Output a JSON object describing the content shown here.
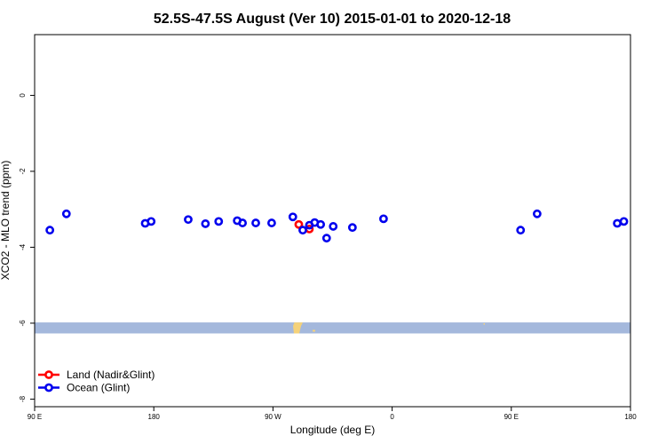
{
  "chart_data": {
    "type": "scatter",
    "title": "52.5S-47.5S August (Ver 10)   2015-01-01 to 2020-12-18",
    "xlabel": "Longitude (deg E)",
    "ylabel": "XCO2 - MLO trend (ppm)",
    "xlim": [
      90,
      540
    ],
    "ylim": [
      -8.2,
      1.6
    ],
    "x_ticks": [
      {
        "value": 90,
        "label": "90 E"
      },
      {
        "value": 180,
        "label": "180"
      },
      {
        "value": 270,
        "label": "90 W"
      },
      {
        "value": 360,
        "label": "0"
      },
      {
        "value": 450,
        "label": "90 E"
      },
      {
        "value": 540,
        "label": "180"
      }
    ],
    "y_ticks": [
      {
        "value": 0,
        "label": "0"
      },
      {
        "value": -2,
        "label": "-2"
      },
      {
        "value": -4,
        "label": "-4"
      },
      {
        "value": -6,
        "label": "-6"
      },
      {
        "value": -8,
        "label": "-8"
      }
    ],
    "legend_position": "bottom-left",
    "series": [
      {
        "name": "Land (Nadir&Glint)",
        "color": "#ff0000",
        "points": [
          {
            "x": 289.5,
            "y": -3.4
          },
          {
            "x": 297.5,
            "y": -3.52
          }
        ]
      },
      {
        "name": "Ocean (Glint)",
        "color": "#0000ee",
        "points": [
          {
            "x": 101.5,
            "y": -3.55
          },
          {
            "x": 114,
            "y": -3.12
          },
          {
            "x": 173.5,
            "y": -3.37
          },
          {
            "x": 178,
            "y": -3.32
          },
          {
            "x": 206,
            "y": -3.27
          },
          {
            "x": 219,
            "y": -3.38
          },
          {
            "x": 229,
            "y": -3.32
          },
          {
            "x": 243,
            "y": -3.3
          },
          {
            "x": 247,
            "y": -3.36
          },
          {
            "x": 257,
            "y": -3.36
          },
          {
            "x": 269,
            "y": -3.36
          },
          {
            "x": 285,
            "y": -3.2
          },
          {
            "x": 292.5,
            "y": -3.55
          },
          {
            "x": 297.5,
            "y": -3.42
          },
          {
            "x": 301.5,
            "y": -3.35
          },
          {
            "x": 306,
            "y": -3.4
          },
          {
            "x": 310.5,
            "y": -3.76
          },
          {
            "x": 315.5,
            "y": -3.45
          },
          {
            "x": 330,
            "y": -3.48
          },
          {
            "x": 353.5,
            "y": -3.25
          },
          {
            "x": 457,
            "y": -3.55
          },
          {
            "x": 469.5,
            "y": -3.12
          },
          {
            "x": 530,
            "y": -3.37
          },
          {
            "x": 535,
            "y": -3.32
          }
        ]
      }
    ],
    "land_ocean_strip": {
      "y_range": [
        -6.27,
        -5.98
      ],
      "ocean_color": "#a4b8dc",
      "land_color": "#f5d27a"
    }
  }
}
